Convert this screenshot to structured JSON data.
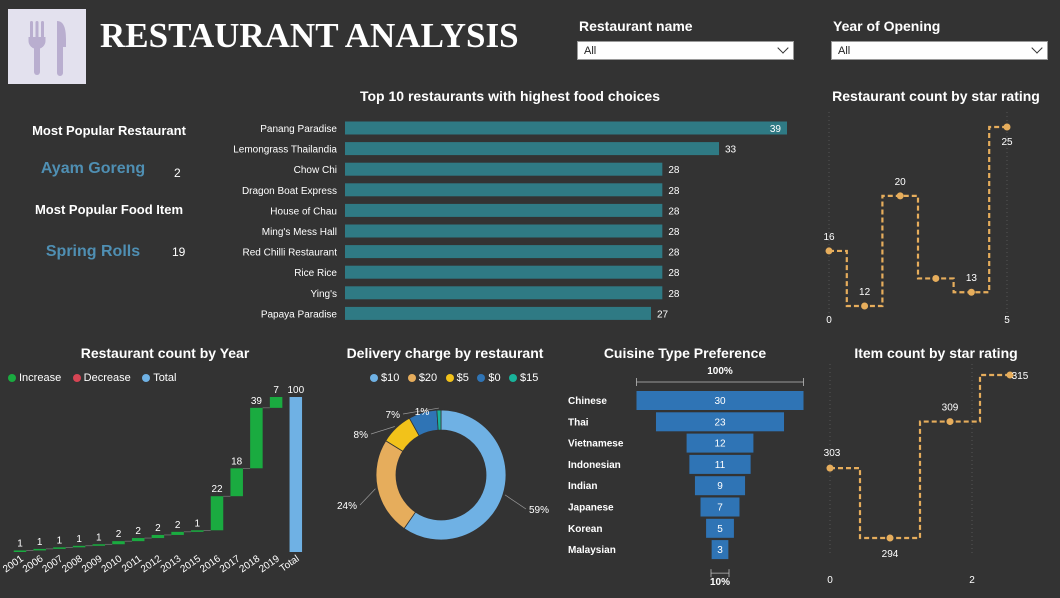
{
  "header": {
    "title": "RESTAURANT ANALYSIS",
    "logo_icon": "fork-knife-icon"
  },
  "filters": {
    "restaurant_name": {
      "label": "Restaurant name",
      "value": "All"
    },
    "year_of_opening": {
      "label": "Year of Opening",
      "value": "All"
    }
  },
  "kpis": {
    "popular_restaurant_label": "Most Popular Restaurant",
    "popular_restaurant_name": "Ayam Goreng",
    "popular_restaurant_count": "2",
    "popular_food_label": "Most Popular Food Item",
    "popular_food_name": "Spring Rolls",
    "popular_food_count": "19"
  },
  "chart_data": [
    {
      "id": "top10",
      "type": "bar",
      "orientation": "horizontal",
      "title": "Top 10 restaurants with highest food choices",
      "categories": [
        "Panang Paradise",
        "Lemongrass Thailandia",
        "Chow Chi",
        "Dragon Boat Express",
        "House of Chau",
        "Ming's Mess Hall",
        "Red Chilli Restaurant",
        "Rice Rice",
        "Ying's",
        "Papaya Paradise"
      ],
      "values": [
        39,
        33,
        28,
        28,
        28,
        28,
        28,
        28,
        28,
        27
      ],
      "color": "#2f7a84"
    },
    {
      "id": "star_rating",
      "type": "line",
      "step": true,
      "title": "Restaurant count by star rating",
      "x": [
        0,
        1,
        2,
        3,
        4,
        5
      ],
      "values": [
        16,
        12,
        20,
        14,
        13,
        25
      ],
      "labels": [
        "16",
        "12",
        "20",
        "",
        "13",
        "25"
      ],
      "x_ticks": [
        "0",
        "5"
      ],
      "color": "#e6ad5c"
    },
    {
      "id": "by_year",
      "type": "bar",
      "subtype": "waterfall",
      "title": "Restaurant count by Year",
      "legend": [
        {
          "name": "Increase",
          "color": "#1aab40"
        },
        {
          "name": "Decrease",
          "color": "#d64554"
        },
        {
          "name": "Total",
          "color": "#6fb1e4"
        }
      ],
      "categories": [
        "2001",
        "2006",
        "2007",
        "2008",
        "2009",
        "2010",
        "2011",
        "2012",
        "2013",
        "2015",
        "2016",
        "2017",
        "2018",
        "2019",
        "Total"
      ],
      "values": [
        1,
        1,
        1,
        1,
        1,
        2,
        2,
        2,
        2,
        1,
        22,
        18,
        39,
        7,
        100
      ],
      "labels": [
        "1",
        "1",
        "1",
        "1",
        "1",
        "2",
        "2",
        "2",
        "2",
        "1",
        "22",
        "18",
        "39",
        "7",
        "100"
      ],
      "total_index": 14
    },
    {
      "id": "delivery",
      "type": "pie",
      "donut": true,
      "title": "Delivery charge by restaurant",
      "legend": [
        {
          "name": "$10",
          "color": "#6fb1e4"
        },
        {
          "name": "$20",
          "color": "#e6ad5c"
        },
        {
          "name": "$5",
          "color": "#f2c21a"
        },
        {
          "name": "$0",
          "color": "#2f74b5"
        },
        {
          "name": "$15",
          "color": "#19b39a"
        }
      ],
      "values": [
        59,
        24,
        8,
        7,
        1
      ],
      "labels": [
        "59%",
        "24%",
        "8%",
        "7%",
        "1%"
      ]
    },
    {
      "id": "cuisine",
      "type": "bar",
      "subtype": "funnel",
      "title": "Cuisine Type Preference",
      "top_label": "100%",
      "bottom_label": "10%",
      "categories": [
        "Chinese",
        "Thai",
        "Vietnamese",
        "Indonesian",
        "Indian",
        "Japanese",
        "Korean",
        "Malaysian"
      ],
      "values": [
        30,
        23,
        12,
        11,
        9,
        7,
        5,
        3
      ],
      "color": "#2f74b5"
    },
    {
      "id": "item_star",
      "type": "line",
      "step": true,
      "title": "Item count by star rating",
      "x": [
        0,
        1,
        2,
        3
      ],
      "values": [
        303,
        294,
        309,
        315
      ],
      "labels": [
        "303",
        "294",
        "309",
        "315"
      ],
      "x_ticks": [
        "0",
        "2"
      ],
      "color": "#e6ad5c"
    }
  ]
}
